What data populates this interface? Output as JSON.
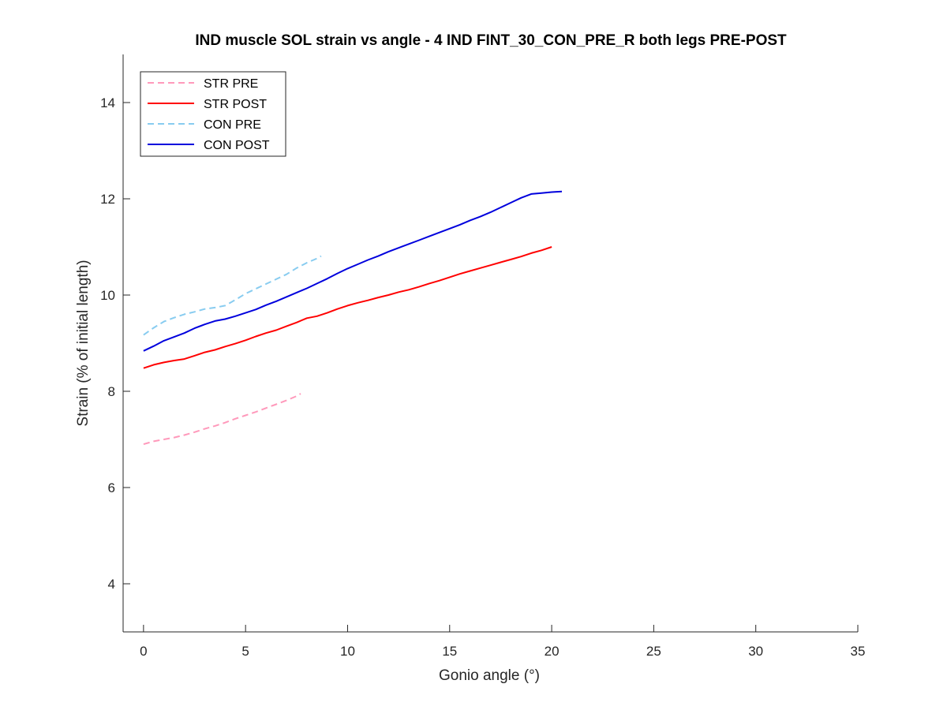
{
  "chart_data": {
    "type": "line",
    "title": "IND muscle SOL strain vs angle - 4 IND FINT_30_CON_PRE_R both legs PRE-POST",
    "xlabel": "Gonio angle (°)",
    "ylabel": "Strain (% of initial length)",
    "xlim": [
      -1,
      35
    ],
    "ylim": [
      3,
      15
    ],
    "xticks": [
      0,
      5,
      10,
      15,
      20,
      25,
      30,
      35
    ],
    "yticks": [
      4,
      6,
      8,
      10,
      12,
      14
    ],
    "grid": false,
    "legend_position": "top-left",
    "series": [
      {
        "name": "STR PRE",
        "color": "#ff99bb",
        "dash": "dashed",
        "x": [
          0,
          0.5,
          1,
          1.5,
          2,
          2.5,
          3,
          3.5,
          4,
          4.5,
          5,
          5.5,
          6,
          6.5,
          7,
          7.5,
          7.7
        ],
        "y": [
          6.9,
          6.96,
          7.0,
          7.04,
          7.09,
          7.15,
          7.22,
          7.28,
          7.35,
          7.43,
          7.5,
          7.57,
          7.65,
          7.73,
          7.81,
          7.9,
          7.95
        ]
      },
      {
        "name": "STR POST",
        "color": "#ff0000",
        "dash": "solid",
        "x": [
          0,
          0.5,
          1,
          1.5,
          2,
          2.5,
          3,
          3.5,
          4,
          4.5,
          5,
          5.5,
          6,
          6.5,
          7,
          7.5,
          8,
          8.5,
          9,
          9.5,
          10,
          10.5,
          11,
          11.5,
          12,
          12.5,
          13,
          13.5,
          14,
          14.5,
          15,
          15.5,
          16,
          16.5,
          17,
          17.5,
          18,
          18.5,
          19,
          19.5,
          20
        ],
        "y": [
          8.48,
          8.55,
          8.6,
          8.64,
          8.67,
          8.74,
          8.81,
          8.86,
          8.93,
          8.99,
          9.06,
          9.14,
          9.21,
          9.27,
          9.35,
          9.43,
          9.52,
          9.56,
          9.63,
          9.71,
          9.78,
          9.84,
          9.89,
          9.95,
          10.0,
          10.06,
          10.11,
          10.17,
          10.24,
          10.3,
          10.37,
          10.44,
          10.5,
          10.56,
          10.62,
          10.68,
          10.74,
          10.8,
          10.87,
          10.93,
          11.0
        ]
      },
      {
        "name": "CON PRE",
        "color": "#88ccf0",
        "dash": "dashed",
        "x": [
          0,
          0.5,
          1,
          1.5,
          2,
          2.5,
          3,
          3.5,
          4,
          4.5,
          5,
          5.5,
          6,
          6.5,
          7,
          7.5,
          8,
          8.5,
          8.7
        ],
        "y": [
          9.17,
          9.32,
          9.45,
          9.53,
          9.6,
          9.65,
          9.71,
          9.74,
          9.78,
          9.9,
          10.03,
          10.13,
          10.23,
          10.33,
          10.43,
          10.56,
          10.67,
          10.76,
          10.81
        ]
      },
      {
        "name": "CON POST",
        "color": "#0000dd",
        "dash": "solid",
        "x": [
          0,
          0.5,
          1,
          1.5,
          2,
          2.5,
          3,
          3.5,
          4,
          4.5,
          5,
          5.5,
          6,
          6.5,
          7,
          7.5,
          8,
          8.5,
          9,
          9.5,
          10,
          10.5,
          11,
          11.5,
          12,
          12.5,
          13,
          13.5,
          14,
          14.5,
          15,
          15.5,
          16,
          16.5,
          17,
          17.5,
          18,
          18.5,
          19,
          19.5,
          20,
          20.5
        ],
        "y": [
          8.84,
          8.94,
          9.05,
          9.13,
          9.21,
          9.31,
          9.39,
          9.46,
          9.5,
          9.56,
          9.63,
          9.7,
          9.79,
          9.87,
          9.96,
          10.05,
          10.14,
          10.24,
          10.34,
          10.45,
          10.55,
          10.64,
          10.73,
          10.81,
          10.9,
          10.98,
          11.06,
          11.14,
          11.22,
          11.3,
          11.38,
          11.46,
          11.55,
          11.63,
          11.72,
          11.82,
          11.92,
          12.02,
          12.1,
          12.12,
          12.14,
          12.15
        ]
      }
    ]
  }
}
